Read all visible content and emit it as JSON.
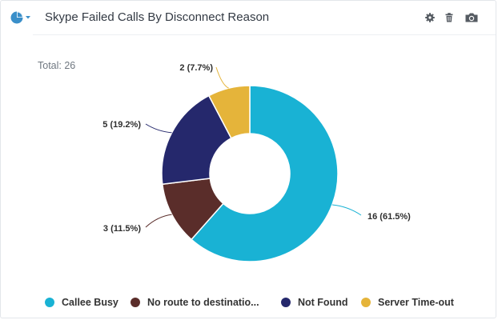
{
  "widget": {
    "title": "Skype Failed Calls By Disconnect Reason",
    "total_label": "Total: 26",
    "tools": [
      "gear-icon",
      "trash-icon",
      "camera-icon"
    ],
    "type_icon": "pie-chart-icon"
  },
  "colors": {
    "callee_busy": "#19b2d4",
    "no_route": "#5a2d2a",
    "not_found": "#25286c",
    "server_timeout": "#e5b43a"
  },
  "chart_data": {
    "type": "pie",
    "total": 26,
    "slices": [
      {
        "name": "Callee Busy",
        "value": 16,
        "label": "16 (61.5%)",
        "color": "#19b2d4"
      },
      {
        "name": "No route to destinatio...",
        "value": 3,
        "label": "3 (11.5%)",
        "color": "#5a2d2a"
      },
      {
        "name": "Not Found",
        "value": 5,
        "label": "5 (19.2%)",
        "color": "#25286c"
      },
      {
        "name": "Server Time-out",
        "value": 2,
        "label": "2 (7.7%)",
        "color": "#e5b43a"
      }
    ],
    "legend_position": "bottom"
  }
}
